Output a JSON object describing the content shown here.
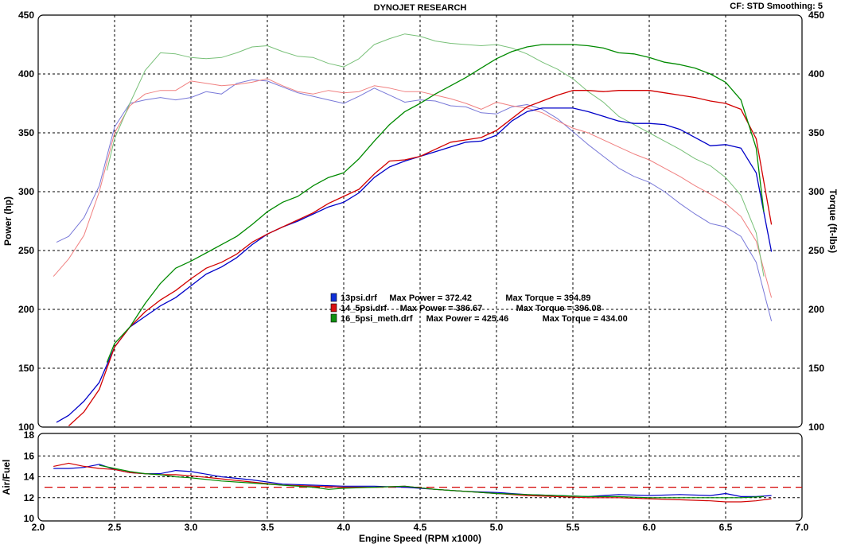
{
  "chart_data": {
    "type": "line",
    "title": "DYNOJET RESEARCH",
    "header_right": "CF: STD  Smoothing: 5",
    "xlabel": "Engine Speed (RPM x1000)",
    "xlim": [
      2.0,
      7.0
    ],
    "x_ticks": [
      "2.0",
      "2.5",
      "3.0",
      "3.5",
      "4.0",
      "4.5",
      "5.0",
      "5.5",
      "6.0",
      "6.5",
      "7.0"
    ],
    "main_panel": {
      "ylabel_left": "Power (hp)",
      "ylabel_right": "Torque (ft-lbs)",
      "ylim": [
        100,
        450
      ],
      "y_ticks": [
        "100",
        "150",
        "200",
        "250",
        "300",
        "350",
        "400",
        "450"
      ],
      "grid": true,
      "series": [
        {
          "name": "13psi.drf",
          "measure": "power",
          "color": "#0000c8",
          "x": [
            2.12,
            2.2,
            2.3,
            2.4,
            2.5,
            2.6,
            2.7,
            2.8,
            2.9,
            3.0,
            3.1,
            3.2,
            3.3,
            3.4,
            3.5,
            3.6,
            3.7,
            3.8,
            3.9,
            4.0,
            4.1,
            4.2,
            4.3,
            4.4,
            4.5,
            4.6,
            4.7,
            4.8,
            4.9,
            5.0,
            5.1,
            5.2,
            5.3,
            5.4,
            5.5,
            5.6,
            5.7,
            5.8,
            5.9,
            6.0,
            6.1,
            6.2,
            6.3,
            6.4,
            6.5,
            6.6,
            6.7,
            6.8
          ],
          "y": [
            104,
            110,
            122,
            138,
            168,
            185,
            194,
            203,
            210,
            220,
            230,
            236,
            244,
            255,
            264,
            270,
            275,
            281,
            287,
            291,
            299,
            312,
            321,
            326,
            330,
            334,
            338,
            342,
            343,
            348,
            360,
            368,
            371,
            371,
            371,
            368,
            364,
            360,
            358,
            358,
            357,
            353,
            346,
            339,
            340,
            337,
            316,
            249
          ]
        },
        {
          "name": "14_5psi.drf",
          "measure": "power",
          "color": "#d20000",
          "x": [
            2.2,
            2.3,
            2.4,
            2.5,
            2.6,
            2.7,
            2.8,
            2.9,
            3.0,
            3.1,
            3.2,
            3.3,
            3.4,
            3.5,
            3.6,
            3.7,
            3.8,
            3.9,
            4.0,
            4.1,
            4.2,
            4.3,
            4.4,
            4.5,
            4.6,
            4.7,
            4.8,
            4.9,
            5.0,
            5.1,
            5.2,
            5.3,
            5.4,
            5.5,
            5.6,
            5.7,
            5.8,
            5.9,
            6.0,
            6.1,
            6.2,
            6.3,
            6.4,
            6.5,
            6.6,
            6.7,
            6.8
          ],
          "y": [
            101,
            113,
            132,
            168,
            185,
            198,
            208,
            216,
            226,
            235,
            240,
            247,
            257,
            264,
            270,
            276,
            282,
            290,
            296,
            302,
            315,
            326,
            327,
            330,
            336,
            342,
            344,
            346,
            352,
            362,
            372,
            377,
            382,
            386,
            386,
            385,
            386,
            386,
            386,
            384,
            382,
            380,
            377,
            375,
            370,
            345,
            272
          ]
        },
        {
          "name": "16_5psi_meth.drf",
          "measure": "power",
          "color": "#008a00",
          "x": [
            2.45,
            2.5,
            2.6,
            2.7,
            2.8,
            2.9,
            3.0,
            3.1,
            3.2,
            3.3,
            3.4,
            3.5,
            3.6,
            3.7,
            3.8,
            3.9,
            4.0,
            4.1,
            4.2,
            4.3,
            4.4,
            4.5,
            4.6,
            4.7,
            4.8,
            4.9,
            5.0,
            5.1,
            5.2,
            5.3,
            5.4,
            5.5,
            5.6,
            5.7,
            5.8,
            5.9,
            6.0,
            6.1,
            6.2,
            6.3,
            6.4,
            6.5,
            6.6,
            6.7,
            6.75
          ],
          "y": [
            155,
            171,
            185,
            205,
            222,
            235,
            241,
            248,
            255,
            262,
            272,
            283,
            291,
            296,
            305,
            312,
            316,
            328,
            343,
            357,
            368,
            375,
            383,
            390,
            397,
            405,
            413,
            419,
            423,
            425,
            425,
            425,
            424,
            422,
            418,
            417,
            414,
            410,
            408,
            405,
            400,
            393,
            378,
            337,
            283
          ]
        },
        {
          "name": "13psi.drf",
          "measure": "torque",
          "color": "#7878d8",
          "x": [
            2.12,
            2.2,
            2.3,
            2.4,
            2.5,
            2.6,
            2.7,
            2.8,
            2.9,
            3.0,
            3.1,
            3.2,
            3.3,
            3.4,
            3.5,
            3.6,
            3.7,
            3.8,
            3.9,
            4.0,
            4.1,
            4.2,
            4.3,
            4.4,
            4.5,
            4.6,
            4.7,
            4.8,
            4.9,
            5.0,
            5.1,
            5.2,
            5.3,
            5.4,
            5.5,
            5.6,
            5.7,
            5.8,
            5.9,
            6.0,
            6.1,
            6.2,
            6.3,
            6.4,
            6.5,
            6.6,
            6.7,
            6.8
          ],
          "y": [
            257,
            262,
            278,
            305,
            355,
            375,
            378,
            380,
            378,
            380,
            385,
            383,
            392,
            395,
            394,
            389,
            384,
            381,
            378,
            375,
            381,
            388,
            382,
            376,
            378,
            377,
            373,
            372,
            367,
            366,
            372,
            374,
            370,
            362,
            351,
            340,
            330,
            320,
            313,
            308,
            300,
            290,
            281,
            273,
            270,
            262,
            240,
            190
          ]
        },
        {
          "name": "14_5psi.drf",
          "measure": "torque",
          "color": "#f08080",
          "x": [
            2.1,
            2.2,
            2.3,
            2.4,
            2.5,
            2.6,
            2.7,
            2.8,
            2.9,
            3.0,
            3.1,
            3.2,
            3.3,
            3.4,
            3.5,
            3.6,
            3.7,
            3.8,
            3.9,
            4.0,
            4.1,
            4.2,
            4.3,
            4.4,
            4.5,
            4.6,
            4.7,
            4.8,
            4.9,
            5.0,
            5.1,
            5.2,
            5.3,
            5.4,
            5.5,
            5.6,
            5.7,
            5.8,
            5.9,
            6.0,
            6.1,
            6.2,
            6.3,
            6.4,
            6.5,
            6.6,
            6.7,
            6.8
          ],
          "y": [
            228,
            243,
            263,
            300,
            350,
            373,
            383,
            386,
            386,
            394,
            392,
            390,
            391,
            393,
            396,
            390,
            385,
            383,
            386,
            384,
            385,
            390,
            388,
            385,
            385,
            382,
            379,
            375,
            370,
            376,
            373,
            371,
            367,
            360,
            354,
            350,
            344,
            338,
            332,
            327,
            320,
            313,
            305,
            298,
            290,
            279,
            258,
            210
          ]
        },
        {
          "name": "16_5psi_meth.drf",
          "measure": "torque",
          "color": "#78c078",
          "x": [
            2.45,
            2.5,
            2.6,
            2.7,
            2.8,
            2.9,
            3.0,
            3.1,
            3.2,
            3.3,
            3.4,
            3.5,
            3.6,
            3.7,
            3.8,
            3.9,
            4.0,
            4.1,
            4.2,
            4.3,
            4.4,
            4.5,
            4.6,
            4.7,
            4.8,
            4.9,
            5.0,
            5.1,
            5.2,
            5.3,
            5.4,
            5.5,
            5.6,
            5.7,
            5.8,
            5.9,
            6.0,
            6.1,
            6.2,
            6.3,
            6.4,
            6.5,
            6.6,
            6.7,
            6.75
          ],
          "y": [
            318,
            345,
            375,
            403,
            418,
            417,
            414,
            413,
            414,
            418,
            423,
            424,
            419,
            415,
            414,
            409,
            406,
            413,
            425,
            430,
            434,
            432,
            428,
            426,
            425,
            424,
            425,
            422,
            417,
            410,
            404,
            396,
            385,
            376,
            364,
            357,
            350,
            343,
            336,
            328,
            322,
            312,
            297,
            265,
            228
          ]
        }
      ],
      "legend": [
        {
          "file": "13psi.drf",
          "max_power_label": "Max Power = 372.42",
          "max_torque_label": "Max Torque = 394.89",
          "color": "#1030d8"
        },
        {
          "file": "14_5psi.drf",
          "max_power_label": "Max Power = 386.67",
          "max_torque_label": "Max Torque = 396.08",
          "color": "#d81010"
        },
        {
          "file": "16_5psi_meth.drf",
          "max_power_label": "Max Power = 425.46",
          "max_torque_label": "Max Torque = 434.00",
          "color": "#109010"
        }
      ]
    },
    "af_panel": {
      "ylabel": "Air/Fuel",
      "ylim": [
        10,
        18
      ],
      "y_ticks": [
        "10",
        "12",
        "14",
        "16",
        "18"
      ],
      "reference_line": 13.0,
      "reference_color": "#d20000",
      "series": [
        {
          "name": "13psi.drf",
          "color": "#0000c8",
          "x": [
            2.1,
            2.2,
            2.3,
            2.4,
            2.5,
            2.6,
            2.7,
            2.8,
            2.9,
            3.0,
            3.2,
            3.4,
            3.6,
            3.8,
            4.0,
            4.2,
            4.4,
            4.6,
            4.8,
            5.0,
            5.2,
            5.4,
            5.6,
            5.8,
            6.0,
            6.2,
            6.4,
            6.5,
            6.6,
            6.7,
            6.8
          ],
          "y": [
            14.8,
            14.8,
            14.9,
            15.2,
            14.7,
            14.4,
            14.3,
            14.3,
            14.6,
            14.5,
            14.0,
            13.7,
            13.3,
            13.2,
            13.1,
            13.1,
            13.0,
            12.8,
            12.6,
            12.5,
            12.3,
            12.2,
            12.1,
            12.3,
            12.2,
            12.3,
            12.2,
            12.4,
            12.1,
            12.1,
            12.2
          ]
        },
        {
          "name": "14_5psi.drf",
          "color": "#d20000",
          "x": [
            2.1,
            2.2,
            2.3,
            2.4,
            2.5,
            2.6,
            2.7,
            2.8,
            2.9,
            3.0,
            3.2,
            3.4,
            3.6,
            3.8,
            4.0,
            4.2,
            4.4,
            4.6,
            4.8,
            5.0,
            5.2,
            5.4,
            5.6,
            5.8,
            6.0,
            6.2,
            6.4,
            6.5,
            6.6,
            6.7,
            6.8
          ],
          "y": [
            15.0,
            15.3,
            15.0,
            14.8,
            14.7,
            14.4,
            14.3,
            14.2,
            14.2,
            14.1,
            13.8,
            13.5,
            13.2,
            13.1,
            13.0,
            13.0,
            13.1,
            12.8,
            12.6,
            12.4,
            12.2,
            12.1,
            12.0,
            12.0,
            11.9,
            11.8,
            11.7,
            11.6,
            11.6,
            11.7,
            11.9
          ]
        },
        {
          "name": "16_5psi_meth.drf",
          "color": "#008a00",
          "x": [
            2.4,
            2.5,
            2.6,
            2.7,
            2.8,
            2.9,
            3.0,
            3.2,
            3.4,
            3.6,
            3.8,
            3.9,
            4.0,
            4.2,
            4.4,
            4.6,
            4.8,
            5.0,
            5.2,
            5.4,
            5.6,
            5.8,
            6.0,
            6.2,
            6.4,
            6.6,
            6.75
          ],
          "y": [
            15.1,
            14.8,
            14.5,
            14.3,
            14.2,
            14.0,
            13.9,
            13.6,
            13.4,
            13.2,
            13.0,
            12.8,
            12.9,
            13.0,
            13.1,
            12.8,
            12.6,
            12.4,
            12.3,
            12.2,
            12.1,
            12.1,
            12.0,
            12.0,
            12.0,
            12.0,
            12.1
          ]
        }
      ]
    }
  }
}
